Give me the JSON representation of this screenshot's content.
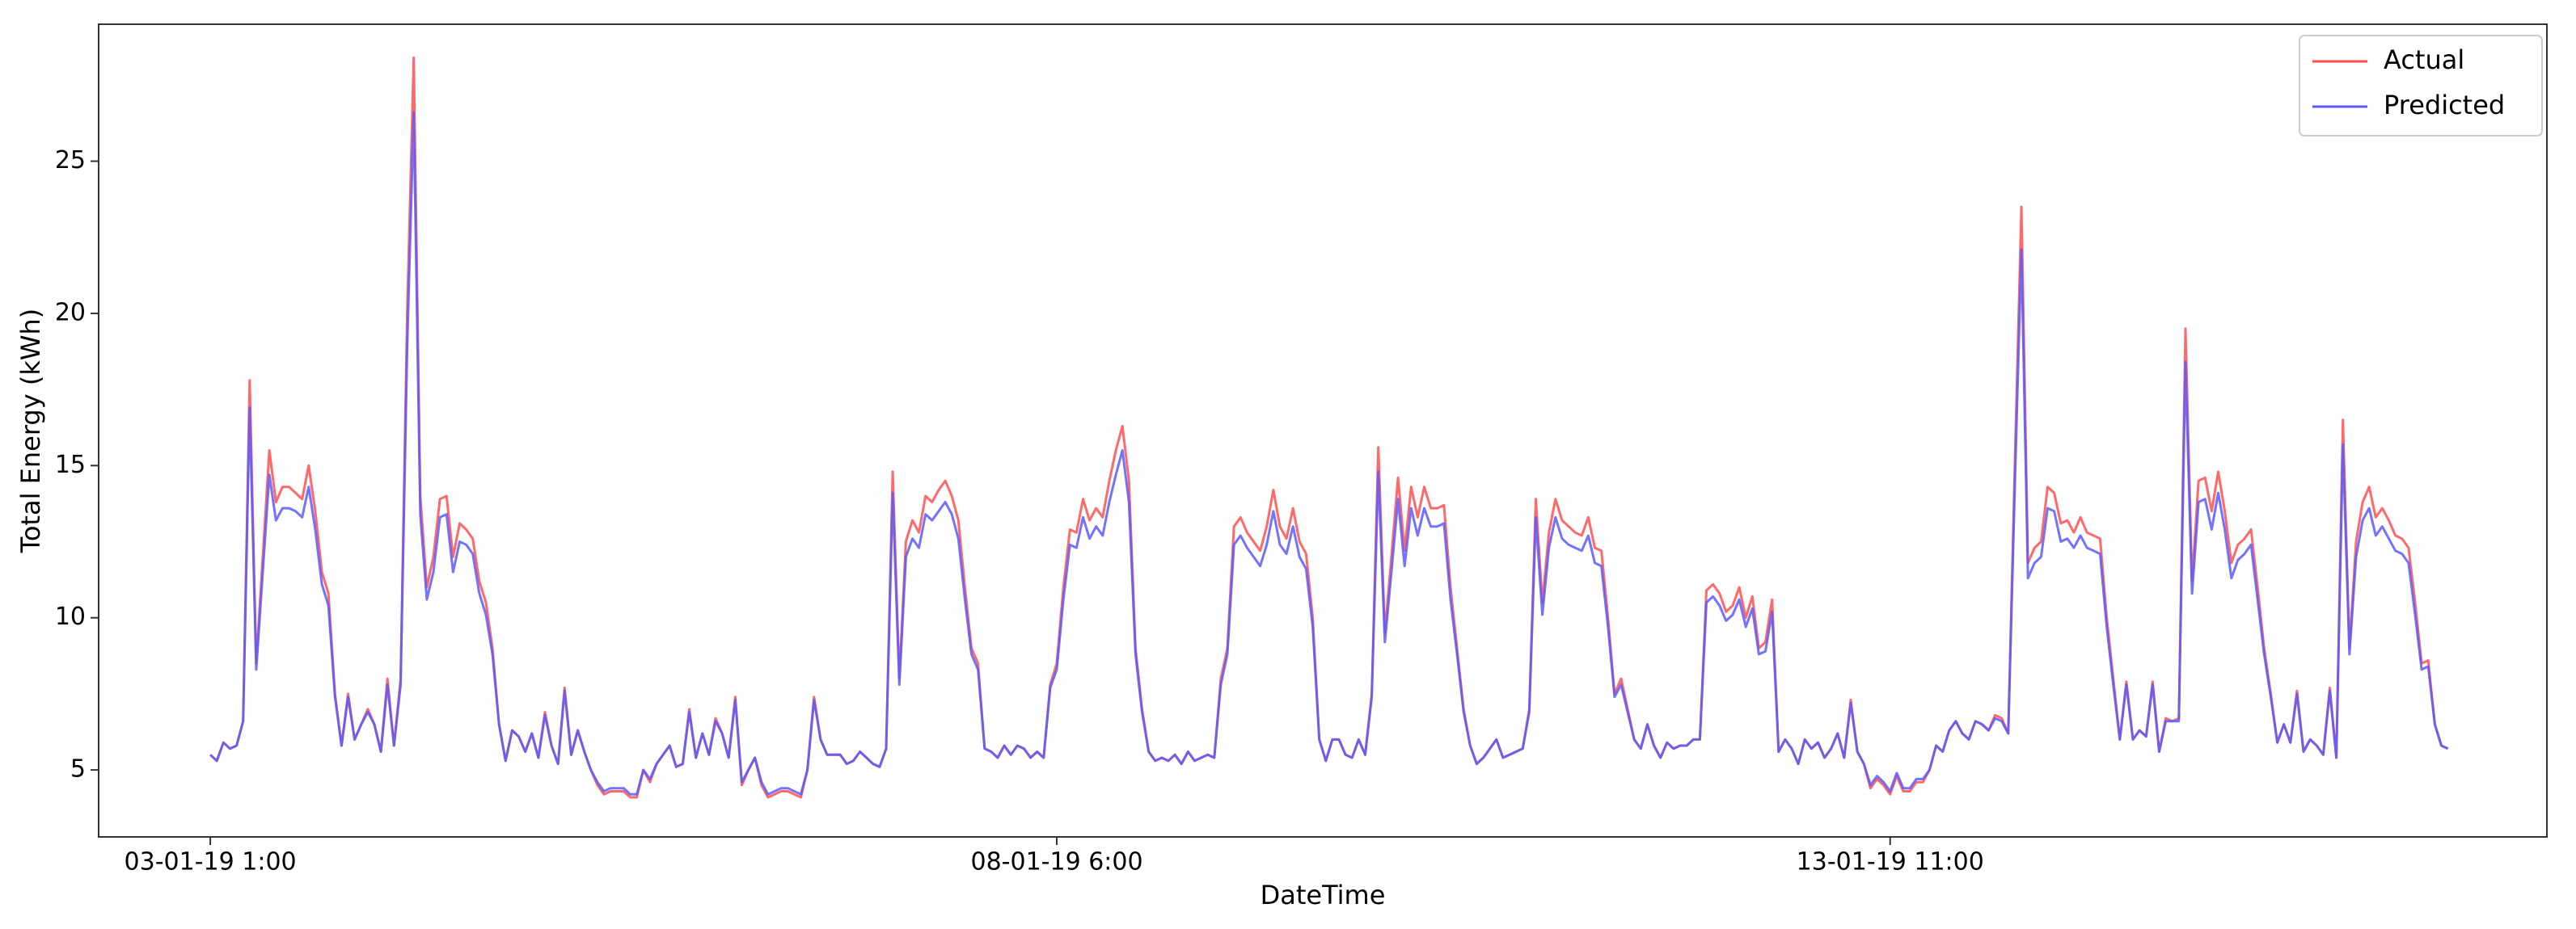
{
  "chart_data": {
    "type": "line",
    "xlabel": "DateTime",
    "ylabel": "Total Energy (kWh)",
    "ylim": [
      2.8,
      29.5
    ],
    "yticks": [
      5,
      10,
      15,
      20,
      25
    ],
    "grid": false,
    "legend": "upper right",
    "categories": [
      "03-01-19 1:00",
      null,
      null,
      null,
      null,
      null,
      null,
      null,
      null,
      null,
      null,
      null,
      null,
      null,
      null,
      null,
      null,
      null,
      null,
      null,
      null,
      null,
      null,
      null,
      null,
      null,
      null,
      null,
      null,
      null,
      null,
      null,
      null,
      null,
      null,
      null,
      null,
      null,
      null,
      null,
      null,
      null,
      null,
      null,
      null,
      null,
      null,
      null,
      null,
      null,
      null,
      null,
      null,
      null,
      null,
      null,
      null,
      null,
      null,
      null,
      null,
      null,
      null,
      null,
      null,
      null,
      null,
      null,
      null,
      null,
      null,
      null,
      null,
      null,
      null,
      null,
      null,
      null,
      null,
      null,
      null,
      null,
      null,
      null,
      null,
      null,
      null,
      null,
      null,
      null,
      null,
      null,
      null,
      null,
      null,
      null,
      null,
      null,
      null,
      null,
      null,
      null,
      null,
      null,
      null,
      null,
      null,
      null,
      null,
      null,
      null,
      null,
      null,
      null,
      null,
      null,
      null,
      null,
      null,
      null,
      null,
      null,
      null,
      null,
      null,
      null,
      null,
      null,
      null,
      "08-01-19 6:00",
      null,
      null,
      null,
      null,
      null,
      null,
      null,
      null,
      null,
      null,
      null,
      null,
      null,
      null,
      null,
      null,
      null,
      null,
      null,
      null,
      null,
      null,
      null,
      null,
      null,
      null,
      null,
      null,
      null,
      null,
      null,
      null,
      null,
      null,
      null,
      null,
      null,
      null,
      null,
      null,
      null,
      null,
      null,
      null,
      null,
      null,
      null,
      null,
      null,
      null,
      null,
      null,
      null,
      null,
      null,
      null,
      null,
      null,
      null,
      null,
      null,
      null,
      null,
      null,
      null,
      null,
      null,
      null,
      null,
      null,
      null,
      null,
      null,
      null,
      null,
      null,
      null,
      null,
      null,
      null,
      null,
      null,
      null,
      null,
      null,
      null,
      null,
      null,
      null,
      null,
      null,
      null,
      null,
      null,
      null,
      null,
      null,
      null,
      null,
      null,
      null,
      null,
      null,
      null,
      null,
      null,
      null,
      null,
      null,
      null,
      null,
      null,
      null,
      null,
      null,
      null,
      null,
      null,
      null,
      null,
      null,
      null,
      null,
      null,
      null,
      null,
      "13-01-19 11:00",
      null,
      null,
      null,
      null,
      null,
      null,
      null,
      null,
      null,
      null,
      null,
      null,
      null,
      null,
      null,
      null,
      null,
      null,
      null,
      null,
      null,
      null,
      null,
      null,
      null,
      null,
      null,
      null,
      null,
      null,
      null,
      null,
      null,
      null,
      null,
      null,
      null,
      null,
      null,
      null,
      null,
      null,
      null,
      null,
      null,
      null,
      null,
      null,
      null,
      null,
      null,
      null,
      null,
      null,
      null,
      null,
      null,
      null,
      null,
      null,
      null,
      null,
      null,
      null,
      null,
      null,
      null,
      null,
      null,
      null,
      null,
      null,
      null,
      null,
      null,
      null,
      null,
      null,
      null,
      null,
      null,
      null,
      null,
      null,
      null
    ],
    "series": [
      {
        "name": "Actual",
        "color": "#ff4f4f",
        "values": [
          5.5,
          5.3,
          5.9,
          5.7,
          5.8,
          6.6,
          17.8,
          8.5,
          12,
          15.5,
          13.8,
          14.3,
          14.3,
          14.1,
          13.9,
          15,
          13.5,
          11.5,
          10.8,
          7.5,
          5.8,
          7.5,
          6,
          6.5,
          7,
          6.5,
          5.6,
          8,
          5.8,
          8,
          20,
          28.4,
          14,
          11,
          12,
          13.9,
          14,
          12,
          13.1,
          12.9,
          12.6,
          11.2,
          10.5,
          9,
          6.5,
          5.3,
          6.3,
          6.1,
          5.6,
          6.2,
          5.4,
          6.9,
          5.8,
          5.2,
          7.7,
          5.5,
          6.3,
          5.6,
          5,
          4.5,
          4.2,
          4.3,
          4.3,
          4.3,
          4.1,
          4.1,
          5,
          4.6,
          5.2,
          5.5,
          5.8,
          5.1,
          5.2,
          7,
          5.4,
          6.2,
          5.5,
          6.7,
          6.2,
          5.4,
          7.4,
          4.5,
          5,
          5.4,
          4.5,
          4.1,
          4.2,
          4.3,
          4.3,
          4.2,
          4.1,
          5,
          7.4,
          6,
          5.5,
          5.5,
          5.5,
          5.2,
          5.3,
          5.6,
          5.4,
          5.2,
          5.1,
          5.7,
          14.8,
          8,
          12.5,
          13.2,
          12.8,
          14,
          13.8,
          14.2,
          14.5,
          14,
          13.2,
          11,
          9,
          8.5,
          5.7,
          5.6,
          5.4,
          5.8,
          5.5,
          5.8,
          5.7,
          5.4,
          5.6,
          5.4,
          7.8,
          8.5,
          11,
          12.9,
          12.8,
          13.9,
          13.2,
          13.6,
          13.3,
          14.5,
          15.5,
          16.3,
          14.5,
          9,
          7,
          5.6,
          5.3,
          5.4,
          5.3,
          5.5,
          5.2,
          5.6,
          5.3,
          5.4,
          5.5,
          5.4,
          8,
          9,
          13,
          13.3,
          12.8,
          12.5,
          12.2,
          13,
          14.2,
          13,
          12.6,
          13.6,
          12.5,
          12.1,
          10,
          6,
          5.3,
          6,
          6,
          5.5,
          5.4,
          6,
          5.5,
          7.5,
          15.6,
          9.5,
          12,
          14.6,
          12.2,
          14.3,
          13.3,
          14.3,
          13.6,
          13.6,
          13.7,
          11,
          9,
          7,
          5.8,
          5.2,
          5.4,
          5.7,
          6,
          5.4,
          5.5,
          5.6,
          5.7,
          7,
          13.9,
          10.5,
          12.8,
          13.9,
          13.2,
          13,
          12.8,
          12.7,
          13.3,
          12.3,
          12.2,
          10,
          7.5,
          8,
          7,
          6,
          5.7,
          6.5,
          5.8,
          5.4,
          5.9,
          5.7,
          5.8,
          5.8,
          6,
          6,
          10.9,
          11.1,
          10.8,
          10.2,
          10.4,
          11,
          10,
          10.7,
          9,
          9.2,
          10.6,
          5.6,
          6,
          5.7,
          5.2,
          6,
          5.7,
          5.9,
          5.4,
          5.7,
          6.2,
          5.4,
          7.3,
          5.6,
          5.2,
          4.4,
          4.7,
          4.5,
          4.2,
          4.8,
          4.3,
          4.3,
          4.6,
          4.6,
          5,
          5.8,
          5.6,
          6.3,
          6.6,
          6.2,
          6,
          6.6,
          6.5,
          6.3,
          6.8,
          6.7,
          6.2,
          15,
          23.5,
          11.8,
          12.3,
          12.5,
          14.3,
          14.1,
          13.1,
          13.2,
          12.8,
          13.3,
          12.8,
          12.7,
          12.6,
          10,
          8,
          6,
          7.9,
          6,
          6.3,
          6.1,
          7.9,
          5.6,
          6.7,
          6.6,
          6.7,
          19.5,
          11.2,
          14.5,
          14.6,
          13.5,
          14.8,
          13.5,
          11.8,
          12.4,
          12.6,
          12.9,
          11,
          9,
          7.5,
          5.9,
          6.5,
          5.9,
          7.6,
          5.6,
          6,
          5.8,
          5.5,
          7.7,
          5.4,
          16.5,
          9,
          12.5,
          13.8,
          14.3,
          13.3,
          13.6,
          13.2,
          12.7,
          12.6,
          12.3,
          10.5,
          8.5,
          8.6,
          6.5,
          5.8,
          5.7
        ]
      },
      {
        "name": "Predicted",
        "color": "#5a5aff",
        "values": [
          5.5,
          5.3,
          5.9,
          5.7,
          5.8,
          6.6,
          16.9,
          8.3,
          11.5,
          14.7,
          13.2,
          13.6,
          13.6,
          13.5,
          13.3,
          14.3,
          12.9,
          11.1,
          10.4,
          7.4,
          5.8,
          7.4,
          6,
          6.5,
          6.9,
          6.5,
          5.6,
          7.8,
          5.8,
          7.8,
          18.9,
          26.6,
          13.4,
          10.6,
          11.5,
          13.3,
          13.4,
          11.5,
          12.5,
          12.4,
          12.1,
          10.8,
          10.1,
          8.8,
          6.5,
          5.3,
          6.3,
          6.1,
          5.6,
          6.2,
          5.4,
          6.8,
          5.8,
          5.2,
          7.6,
          5.5,
          6.3,
          5.6,
          5,
          4.6,
          4.3,
          4.4,
          4.4,
          4.4,
          4.2,
          4.2,
          5,
          4.7,
          5.2,
          5.5,
          5.8,
          5.1,
          5.2,
          6.9,
          5.4,
          6.2,
          5.5,
          6.6,
          6.2,
          5.4,
          7.3,
          4.6,
          5,
          5.4,
          4.6,
          4.2,
          4.3,
          4.4,
          4.4,
          4.3,
          4.2,
          5,
          7.3,
          6,
          5.5,
          5.5,
          5.5,
          5.2,
          5.3,
          5.6,
          5.4,
          5.2,
          5.1,
          5.7,
          14.1,
          7.8,
          12,
          12.6,
          12.3,
          13.4,
          13.2,
          13.5,
          13.8,
          13.4,
          12.6,
          10.6,
          8.8,
          8.3,
          5.7,
          5.6,
          5.4,
          5.8,
          5.5,
          5.8,
          5.7,
          5.4,
          5.6,
          5.4,
          7.7,
          8.3,
          10.6,
          12.4,
          12.3,
          13.3,
          12.6,
          13,
          12.7,
          13.8,
          14.7,
          15.5,
          13.8,
          8.8,
          6.9,
          5.6,
          5.3,
          5.4,
          5.3,
          5.5,
          5.2,
          5.6,
          5.3,
          5.4,
          5.5,
          5.4,
          7.8,
          8.8,
          12.4,
          12.7,
          12.3,
          12,
          11.7,
          12.4,
          13.5,
          12.4,
          12.1,
          13,
          12,
          11.6,
          9.7,
          6,
          5.3,
          6,
          6,
          5.5,
          5.4,
          6,
          5.5,
          7.4,
          14.8,
          9.2,
          11.5,
          13.9,
          11.7,
          13.6,
          12.7,
          13.6,
          13,
          13,
          13.1,
          10.6,
          8.8,
          6.9,
          5.8,
          5.2,
          5.4,
          5.7,
          6,
          5.4,
          5.5,
          5.6,
          5.7,
          6.9,
          13.3,
          10.1,
          12.3,
          13.3,
          12.6,
          12.4,
          12.3,
          12.2,
          12.7,
          11.8,
          11.7,
          9.7,
          7.4,
          7.8,
          6.9,
          6,
          5.7,
          6.5,
          5.8,
          5.4,
          5.9,
          5.7,
          5.8,
          5.8,
          6,
          6,
          10.5,
          10.7,
          10.4,
          9.9,
          10.1,
          10.6,
          9.7,
          10.3,
          8.8,
          8.9,
          10.2,
          5.6,
          6,
          5.7,
          5.2,
          6,
          5.7,
          5.9,
          5.4,
          5.7,
          6.2,
          5.4,
          7.2,
          5.6,
          5.2,
          4.5,
          4.8,
          4.6,
          4.3,
          4.9,
          4.4,
          4.4,
          4.7,
          4.7,
          5,
          5.8,
          5.6,
          6.3,
          6.6,
          6.2,
          6,
          6.6,
          6.5,
          6.3,
          6.7,
          6.6,
          6.2,
          14.3,
          22.1,
          11.3,
          11.8,
          12,
          13.6,
          13.5,
          12.5,
          12.6,
          12.3,
          12.7,
          12.3,
          12.2,
          12.1,
          9.7,
          7.8,
          6,
          7.8,
          6,
          6.3,
          6.1,
          7.8,
          5.6,
          6.6,
          6.6,
          6.6,
          18.4,
          10.8,
          13.8,
          13.9,
          12.9,
          14.1,
          12.9,
          11.3,
          11.9,
          12.1,
          12.4,
          10.6,
          8.8,
          7.4,
          5.9,
          6.5,
          5.9,
          7.5,
          5.6,
          6,
          5.8,
          5.5,
          7.6,
          5.4,
          15.7,
          8.8,
          12,
          13.2,
          13.6,
          12.7,
          13,
          12.6,
          12.2,
          12.1,
          11.8,
          10.1,
          8.3,
          8.4,
          6.5,
          5.8,
          5.7
        ]
      }
    ]
  }
}
